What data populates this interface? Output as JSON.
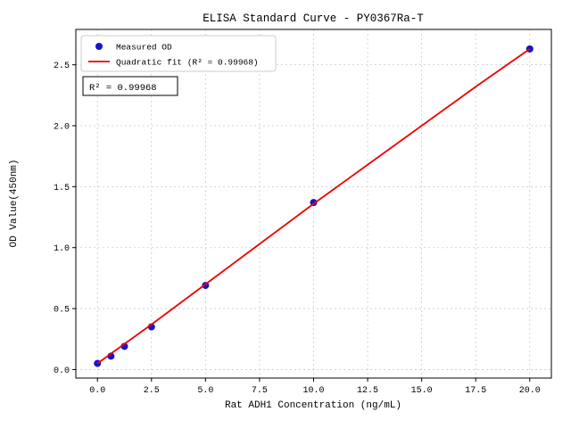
{
  "chart_data": {
    "type": "scatter",
    "title": "ELISA Standard Curve - PY0367Ra-T",
    "xlabel": "Rat ADH1 Concentration (ng/mL)",
    "ylabel": "OD Value(450nm)",
    "xlim": [
      -1.0,
      21.0
    ],
    "ylim": [
      -0.07,
      2.79
    ],
    "x_ticks": [
      0.0,
      2.5,
      5.0,
      7.5,
      10.0,
      12.5,
      15.0,
      17.5,
      20.0
    ],
    "x_tick_labels": [
      "0.0",
      "2.5",
      "5.0",
      "7.5",
      "10.0",
      "12.5",
      "15.0",
      "17.5",
      "20.0"
    ],
    "y_ticks": [
      0.0,
      0.5,
      1.0,
      1.5,
      2.0,
      2.5
    ],
    "y_tick_labels": [
      "0.0",
      "0.5",
      "1.0",
      "1.5",
      "2.0",
      "2.5"
    ],
    "grid": true,
    "legend_position": "upper-left",
    "annotation": "R² = 0.99968",
    "series": [
      {
        "name": "Measured OD",
        "style": "scatter",
        "color": "#1414cc",
        "x": [
          0,
          0.625,
          1.25,
          2.5,
          5,
          10,
          20
        ],
        "y": [
          0.05,
          0.11,
          0.19,
          0.35,
          0.69,
          1.37,
          2.63
        ]
      },
      {
        "name": "Quadratic fit (R² = 0.99968)",
        "style": "line",
        "color": "#ee0000",
        "x": [
          0,
          2.5,
          5,
          7.5,
          10,
          12.5,
          15,
          17.5,
          20
        ],
        "y": [
          0.05,
          0.37,
          0.7,
          1.03,
          1.36,
          1.68,
          2.0,
          2.32,
          2.63
        ]
      }
    ]
  }
}
